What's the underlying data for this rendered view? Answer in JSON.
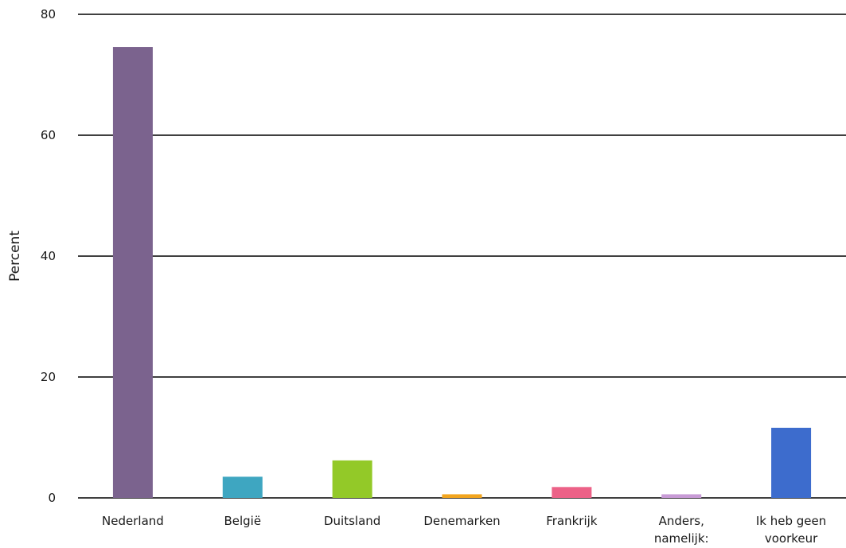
{
  "chart_data": {
    "type": "bar",
    "title": "",
    "xlabel": "",
    "ylabel": "Percent",
    "ylim": [
      0,
      80
    ],
    "yticks": [
      0,
      20,
      40,
      60,
      80
    ],
    "grid": true,
    "categories": [
      [
        "Nederland"
      ],
      [
        "België"
      ],
      [
        "Duitsland"
      ],
      [
        "Denemarken"
      ],
      [
        "Frankrijk"
      ],
      [
        "Anders,",
        "namelijk:"
      ],
      [
        "Ik heb geen",
        "voorkeur"
      ]
    ],
    "values": [
      74.6,
      3.5,
      6.2,
      0.6,
      1.8,
      0.6,
      11.6
    ],
    "colors": [
      "#7b638e",
      "#3ea6c1",
      "#93c928",
      "#f2a51e",
      "#ec6187",
      "#c89bd6",
      "#3d6ccd"
    ]
  }
}
